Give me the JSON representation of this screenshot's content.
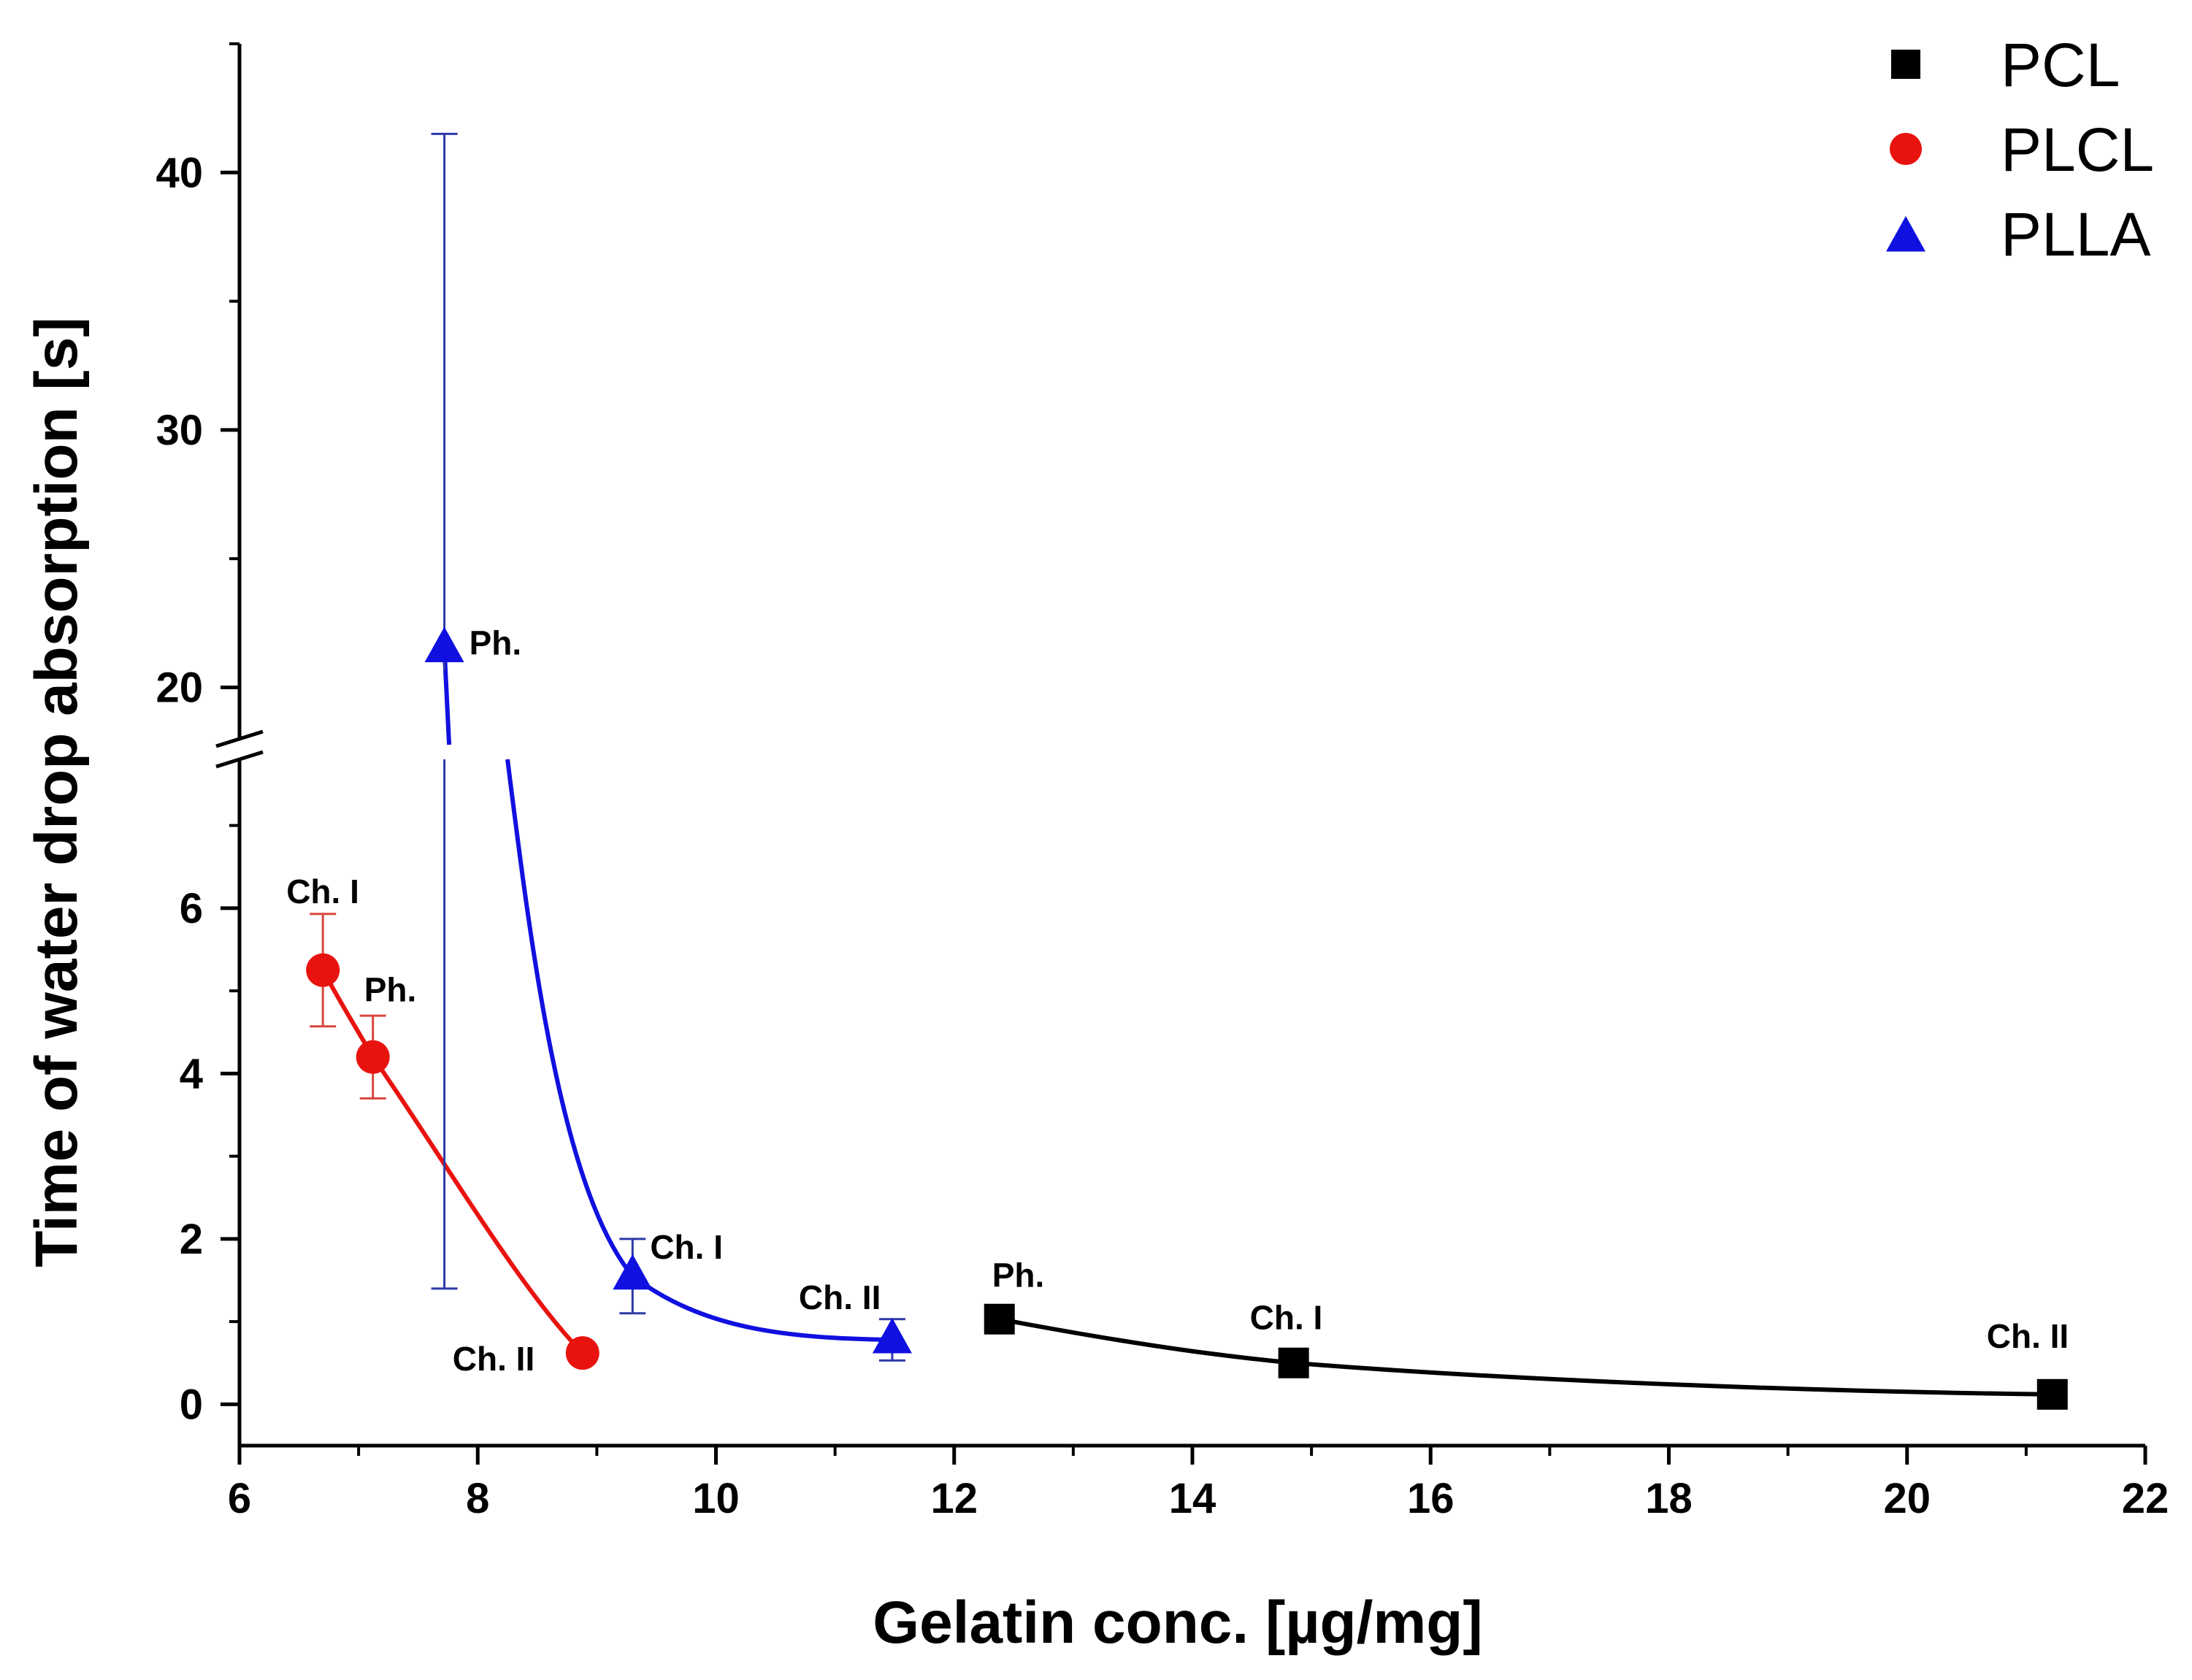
{
  "chart_data": {
    "type": "scatter",
    "xlabel": "Gelatin conc. [µg/mg]",
    "ylabel": "Time of water drop absorption [s]",
    "xlim": [
      6,
      22
    ],
    "x_ticks": [
      6,
      8,
      10,
      12,
      14,
      16,
      18,
      20,
      22
    ],
    "y_lower_range": [
      -0.5,
      7.8
    ],
    "y_upper_range": [
      18,
      45
    ],
    "y_ticks_lower": [
      0,
      2,
      4,
      6
    ],
    "y_ticks_upper": [
      20,
      30,
      40
    ],
    "y_axis_break": true,
    "legend_position": "top-right",
    "series": [
      {
        "name": "PCL",
        "marker": "square",
        "color": "#000000",
        "points": [
          {
            "x": 12.38,
            "y": 1.03,
            "label": "Ph."
          },
          {
            "x": 14.85,
            "y": 0.5,
            "label": "Ch. I"
          },
          {
            "x": 21.22,
            "y": 0.12,
            "label": "Ch. II"
          }
        ]
      },
      {
        "name": "PLCL",
        "marker": "circle",
        "color": "#e8130f",
        "points": [
          {
            "x": 6.7,
            "y": 5.25,
            "err": 0.68,
            "label": "Ch. I"
          },
          {
            "x": 7.12,
            "y": 4.2,
            "err": 0.5,
            "label": "Ph."
          },
          {
            "x": 8.88,
            "y": 0.62,
            "label": "Ch. II"
          }
        ]
      },
      {
        "name": "PLLA",
        "marker": "triangle",
        "color": "#1010e0",
        "points": [
          {
            "x": 7.72,
            "y": 21.5,
            "err_low_to": 1.4,
            "err_high_to": 41.5,
            "label": "Ph."
          },
          {
            "x": 9.3,
            "y": 1.55,
            "err": 0.45,
            "label": "Ch. I"
          },
          {
            "x": 11.48,
            "y": 0.78,
            "err": 0.25,
            "label": "Ch. II"
          }
        ]
      }
    ]
  }
}
